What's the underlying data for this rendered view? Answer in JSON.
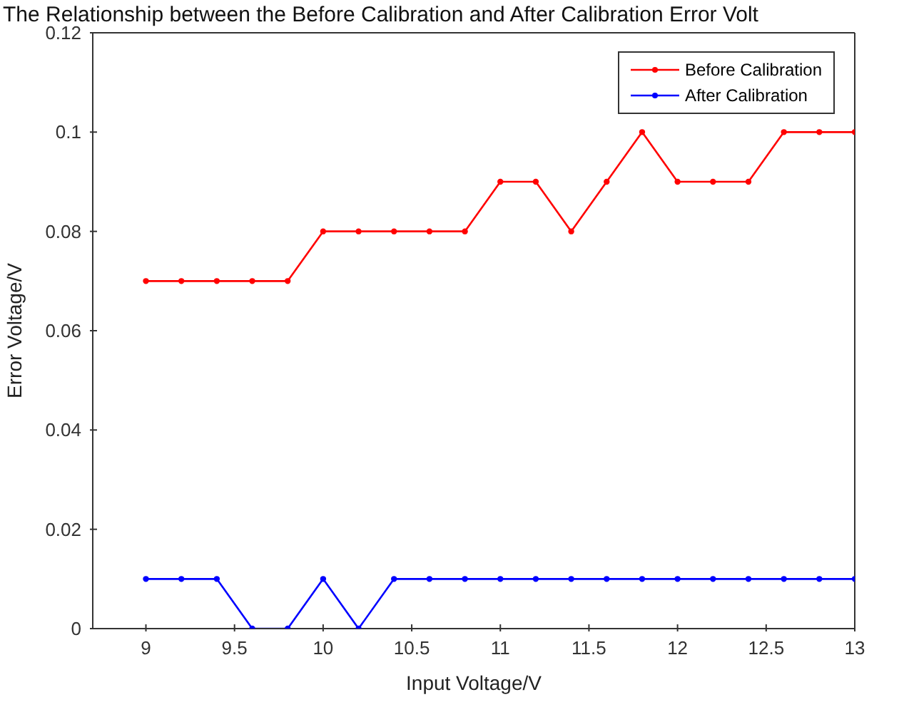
{
  "chart_data": {
    "type": "line",
    "title": "The Relationship between the Before Calibration and After Calibration Error Volt",
    "xlabel": "Input Voltage/V",
    "ylabel": "Error Voltage/V",
    "x": [
      9,
      9.2,
      9.4,
      9.6,
      9.8,
      10,
      10.2,
      10.4,
      10.6,
      10.8,
      11,
      11.2,
      11.4,
      11.6,
      11.8,
      12,
      12.2,
      12.4,
      12.6,
      12.8,
      13
    ],
    "series": [
      {
        "name": "Before Calibration",
        "color": "#ff0000",
        "values": [
          0.07,
          0.07,
          0.07,
          0.07,
          0.07,
          0.08,
          0.08,
          0.08,
          0.08,
          0.08,
          0.09,
          0.09,
          0.08,
          0.09,
          0.1,
          0.09,
          0.09,
          0.09,
          0.1,
          0.1,
          0.1
        ]
      },
      {
        "name": "After Calibration",
        "color": "#0000ff",
        "values": [
          0.01,
          0.01,
          0.01,
          0,
          0,
          0.01,
          0,
          0.01,
          0.01,
          0.01,
          0.01,
          0.01,
          0.01,
          0.01,
          0.01,
          0.01,
          0.01,
          0.01,
          0.01,
          0.01,
          0.01
        ]
      }
    ],
    "xlim": [
      8.7,
      13
    ],
    "xticks": [
      9,
      9.5,
      10,
      10.5,
      11,
      11.5,
      12,
      12.5,
      13
    ],
    "ylim": [
      0,
      0.12
    ],
    "yticks": [
      0,
      0.02,
      0.04,
      0.06,
      0.08,
      0.1,
      0.12
    ],
    "grid": false,
    "legend": "top right",
    "marker": "circle",
    "line_style": "solid"
  }
}
